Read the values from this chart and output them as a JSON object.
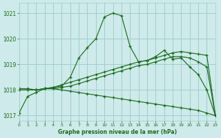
{
  "title": "Graphe pression niveau de la mer (hPa)",
  "background_color": "#ceeaea",
  "grid_color": "#9ecece",
  "line_color": "#1a6b1a",
  "xlim": [
    0,
    23
  ],
  "ylim": [
    1016.8,
    1021.4
  ],
  "yticks": [
    1017,
    1018,
    1019,
    1020,
    1021
  ],
  "xticks": [
    0,
    1,
    2,
    3,
    4,
    5,
    6,
    7,
    8,
    9,
    10,
    11,
    12,
    13,
    14,
    15,
    16,
    17,
    18,
    19,
    20,
    21,
    22,
    23
  ],
  "series": [
    {
      "x": [
        0,
        1,
        2,
        3,
        4,
        5,
        6,
        7,
        8,
        9,
        10,
        11,
        12,
        13,
        14,
        15,
        16,
        17,
        18,
        19,
        20,
        21,
        22,
        23
      ],
      "y": [
        1017.1,
        1017.75,
        1017.9,
        1018.05,
        1018.1,
        1018.15,
        1018.5,
        1019.25,
        1019.65,
        1020.0,
        1020.85,
        1021.0,
        1020.9,
        1019.7,
        1019.1,
        1019.15,
        1019.3,
        1019.55,
        1019.2,
        1019.25,
        1018.9,
        1018.6,
        1018.0,
        1017.0
      ]
    },
    {
      "x": [
        0,
        1,
        2,
        3,
        4,
        5,
        6,
        7,
        8,
        9,
        10,
        11,
        12,
        13,
        14,
        15,
        16,
        17,
        18,
        19,
        20,
        21,
        22,
        23
      ],
      "y": [
        1018.0,
        1018.0,
        1018.0,
        1018.05,
        1018.1,
        1018.2,
        1018.3,
        1018.4,
        1018.5,
        1018.6,
        1018.7,
        1018.8,
        1018.9,
        1019.0,
        1019.1,
        1019.15,
        1019.25,
        1019.35,
        1019.45,
        1019.5,
        1019.45,
        1019.4,
        1019.35,
        1017.0
      ]
    },
    {
      "x": [
        0,
        1,
        2,
        3,
        4,
        5,
        6,
        7,
        8,
        9,
        10,
        11,
        12,
        13,
        14,
        15,
        16,
        17,
        18,
        19,
        20,
        21,
        22,
        23
      ],
      "y": [
        1018.0,
        1018.0,
        1018.0,
        1018.05,
        1018.05,
        1018.1,
        1018.15,
        1018.25,
        1018.35,
        1018.45,
        1018.55,
        1018.65,
        1018.75,
        1018.85,
        1018.95,
        1019.0,
        1019.1,
        1019.2,
        1019.3,
        1019.3,
        1019.25,
        1019.1,
        1018.9,
        1017.0
      ]
    },
    {
      "x": [
        0,
        1,
        2,
        3,
        4,
        5,
        6,
        7,
        8,
        9,
        10,
        11,
        12,
        13,
        14,
        15,
        16,
        17,
        18,
        19,
        20,
        21,
        22,
        23
      ],
      "y": [
        1018.05,
        1018.05,
        1018.0,
        1018.05,
        1018.05,
        1018.0,
        1017.95,
        1017.9,
        1017.85,
        1017.8,
        1017.75,
        1017.7,
        1017.65,
        1017.6,
        1017.55,
        1017.5,
        1017.45,
        1017.4,
        1017.35,
        1017.3,
        1017.25,
        1017.2,
        1017.1,
        1017.0
      ]
    }
  ]
}
